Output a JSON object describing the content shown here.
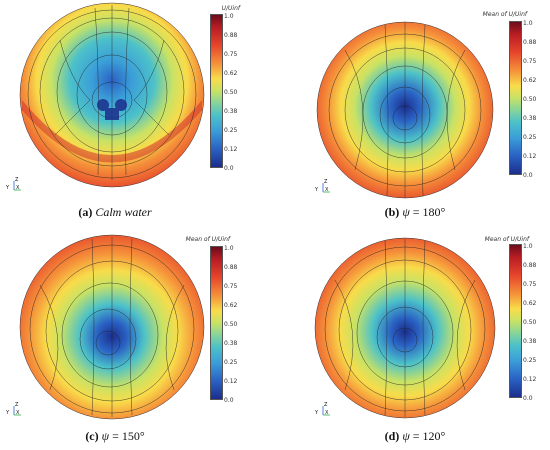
{
  "panels": [
    {
      "id": "a",
      "cbar_title": "U/Uinf",
      "ticks": [
        "1.0",
        "0.88",
        "0.75",
        "0.62",
        "0.50",
        "0.38",
        "0.25",
        "0.12",
        "0.0"
      ],
      "caption_letter": "(a)",
      "caption_text": "Calm water",
      "caption_eq": ""
    },
    {
      "id": "b",
      "cbar_title": "Mean of U/Uinf",
      "ticks": [
        "1.0",
        "0.88",
        "0.75",
        "0.62",
        "0.50",
        "0.38",
        "0.25",
        "0.12",
        "0.0"
      ],
      "caption_letter": "(b)",
      "caption_text": "ψ",
      "caption_eq": " = 180°"
    },
    {
      "id": "c",
      "cbar_title": "Mean of U/Uinf",
      "ticks": [
        "1.0",
        "0.88",
        "0.75",
        "0.62",
        "0.50",
        "0.38",
        "0.25",
        "0.12",
        "0.0"
      ],
      "caption_letter": "(c)",
      "caption_text": "ψ",
      "caption_eq": " = 150°"
    },
    {
      "id": "d",
      "cbar_title": "Mean of U/Uinf",
      "ticks": [
        "1.0",
        "0.88",
        "0.75",
        "0.62",
        "0.50",
        "0.38",
        "0.25",
        "0.12",
        "0.0"
      ],
      "caption_letter": "(d)",
      "caption_text": "ψ",
      "caption_eq": " = 120°"
    }
  ],
  "axis_labels": {
    "z": "Z",
    "y": "Y",
    "x": "X"
  },
  "colors": {
    "dark_red": "#6b0d1a",
    "red": "#e6452b",
    "orange": "#f5913a",
    "yellow": "#f8dc4a",
    "green": "#c8e265",
    "cyan": "#4cc1c9",
    "blue": "#2a62c4",
    "dark_blue": "#1b2e8c"
  }
}
